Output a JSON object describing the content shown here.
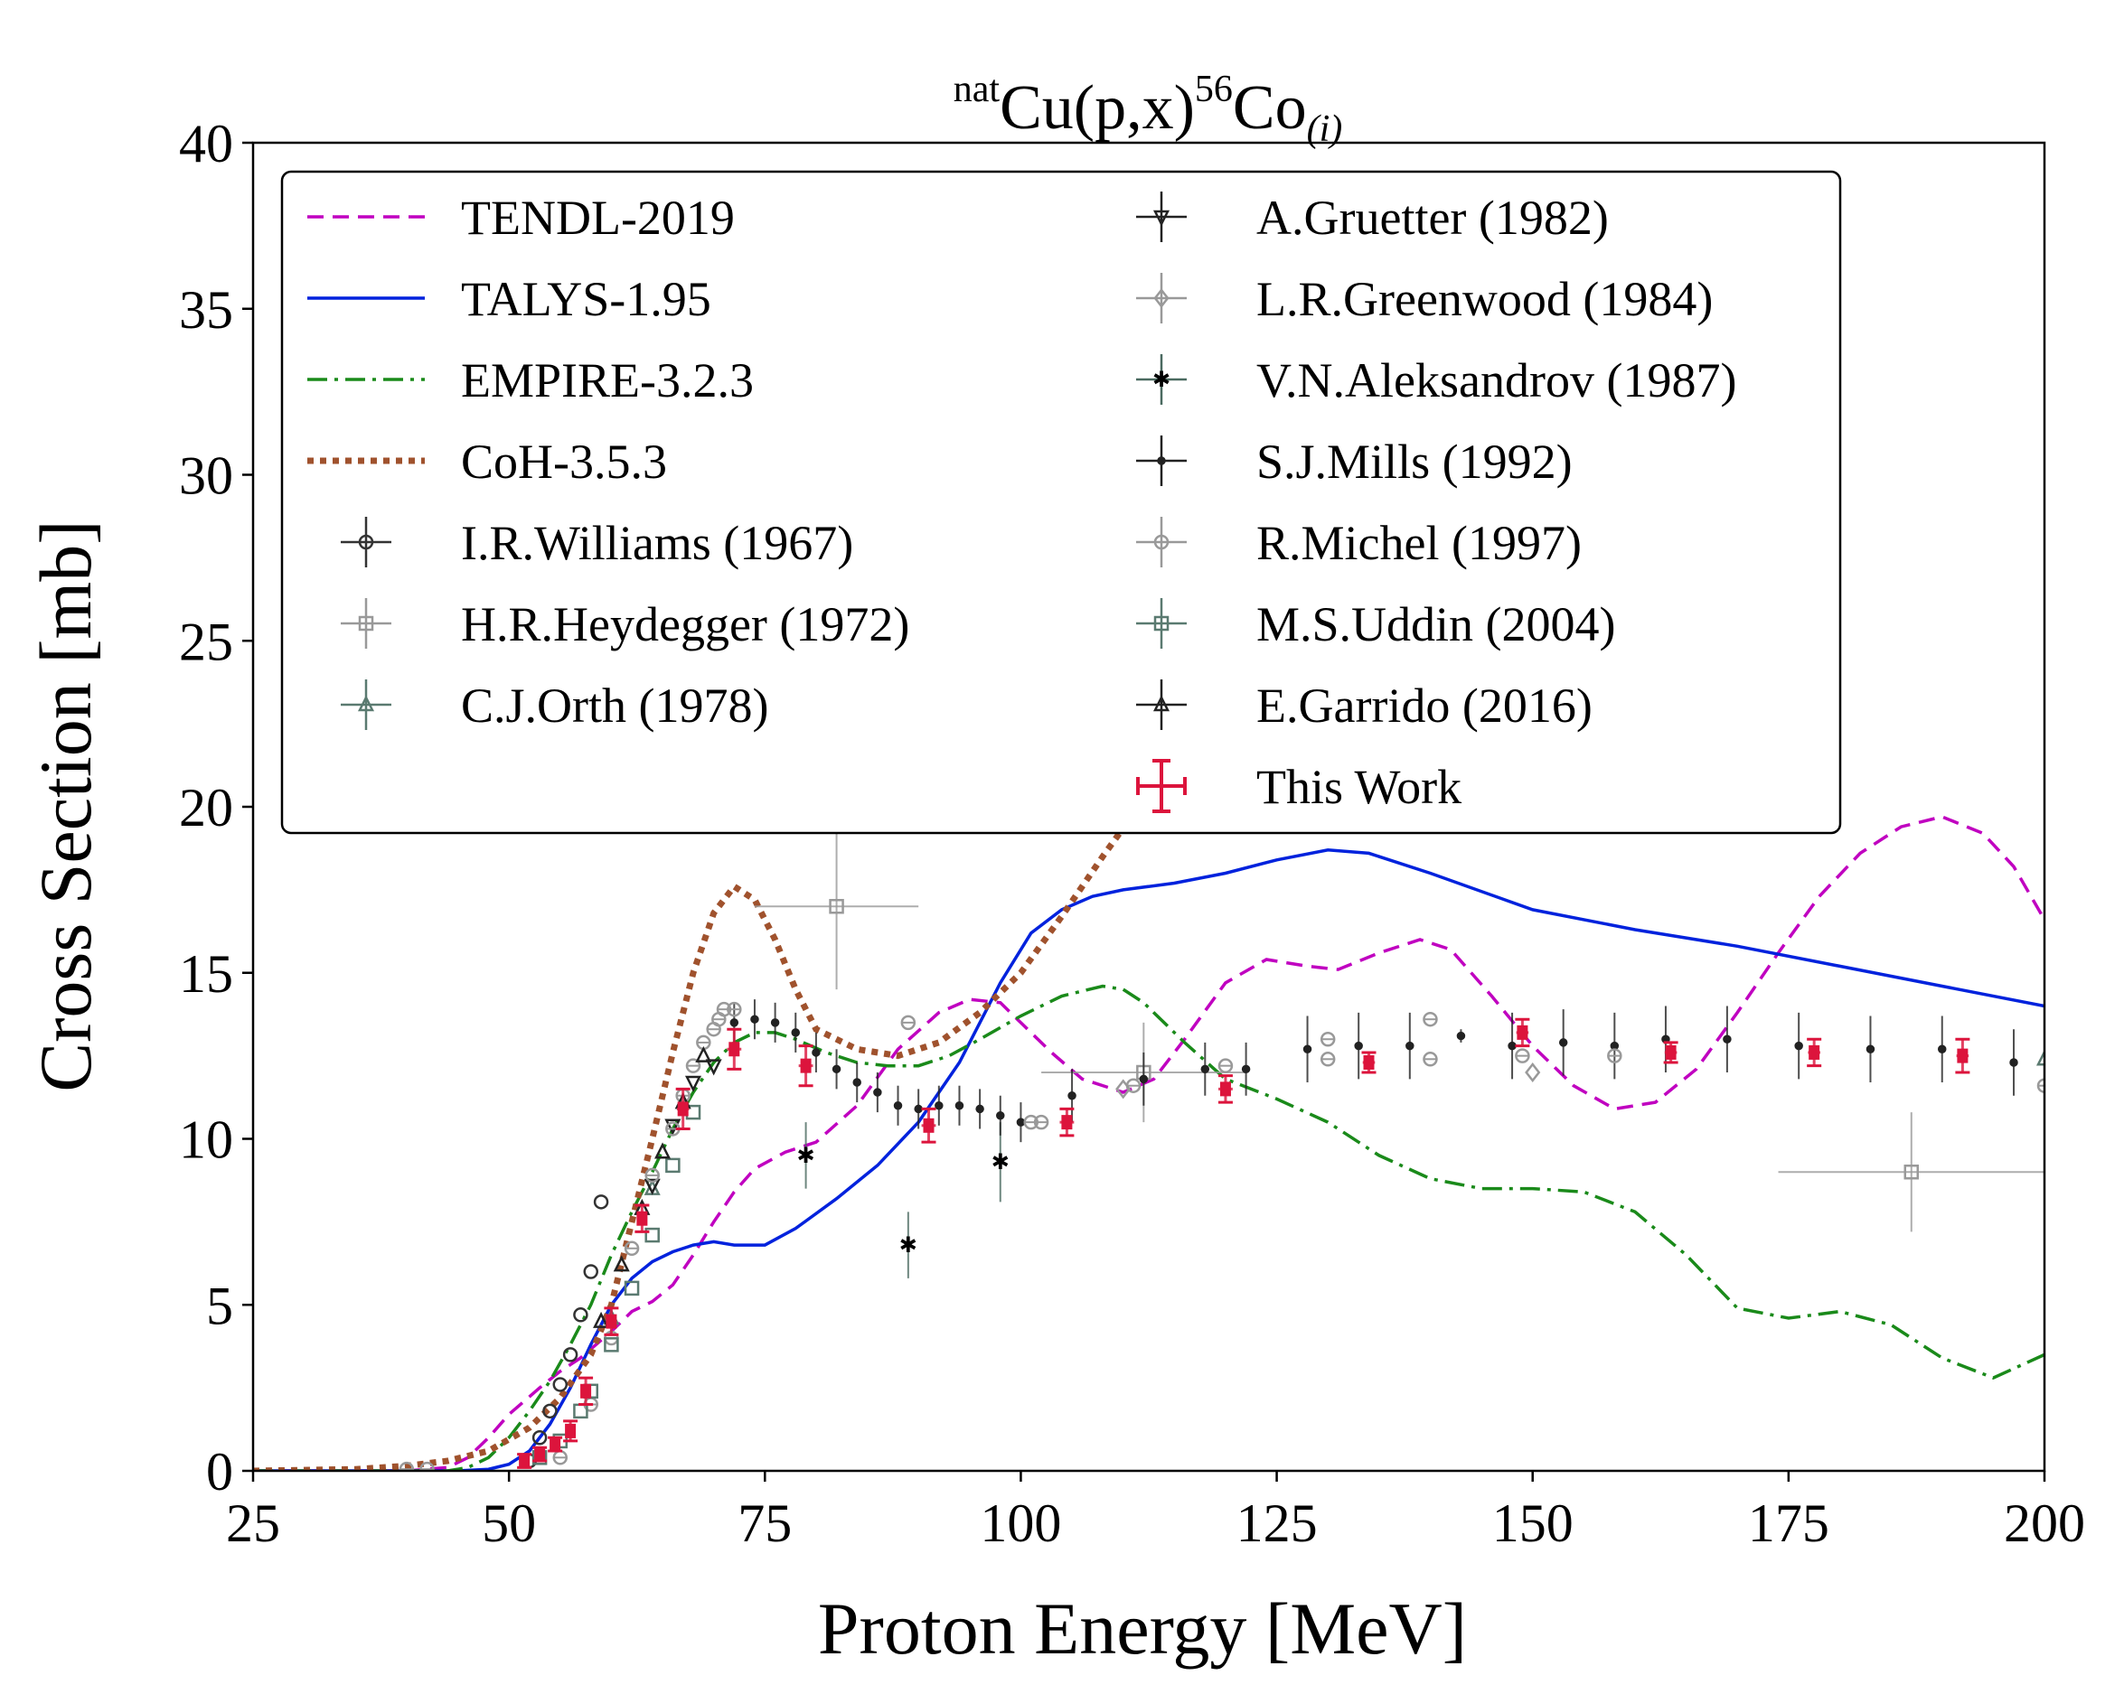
{
  "chart_data": {
    "type": "line",
    "title_prefix": "nat",
    "title_base": "Cu(p,x)",
    "title_mass": "56",
    "title_element": "Co",
    "title_subscript": "(i)",
    "xlabel": "Proton Energy [MeV]",
    "ylabel": "Cross Section [mb]",
    "xlim": [
      25,
      200
    ],
    "ylim": [
      0,
      40
    ],
    "xticks": [
      25,
      50,
      75,
      100,
      125,
      150,
      175,
      200
    ],
    "yticks": [
      0,
      5,
      10,
      15,
      20,
      25,
      30,
      35,
      40
    ],
    "legend_position": "top-left",
    "grid": false,
    "series": [
      {
        "name": "TENDL-2019",
        "kind": "line",
        "color": "#c000c0",
        "dash": "dashed",
        "x": [
          25,
          40,
          44,
          46,
          48,
          50,
          53,
          55,
          57,
          60,
          62,
          64,
          66,
          68,
          70,
          72,
          74,
          77,
          80,
          84,
          88,
          92,
          95,
          98,
          100,
          103,
          106,
          110,
          113,
          116,
          120,
          124,
          128,
          131,
          135,
          139,
          142,
          146,
          150,
          154,
          158,
          162,
          166,
          170,
          174,
          178,
          182,
          186,
          190,
          194,
          197,
          200
        ],
        "y": [
          0,
          0,
          0.1,
          0.4,
          1.0,
          1.7,
          2.5,
          3.0,
          3.4,
          4.2,
          4.8,
          5.1,
          5.6,
          6.5,
          7.5,
          8.4,
          9.1,
          9.6,
          9.9,
          11.0,
          12.7,
          13.8,
          14.2,
          14.1,
          13.5,
          12.6,
          11.8,
          11.4,
          11.8,
          13.0,
          14.7,
          15.4,
          15.2,
          15.1,
          15.6,
          16.0,
          15.7,
          14.3,
          12.8,
          11.6,
          10.9,
          11.1,
          12.1,
          13.8,
          15.6,
          17.3,
          18.6,
          19.4,
          19.7,
          19.2,
          18.2,
          16.6
        ]
      },
      {
        "name": "TALYS-1.95",
        "kind": "line",
        "color": "#0022dd",
        "dash": "solid",
        "x": [
          25,
          45,
          48,
          50,
          52,
          54,
          56,
          58,
          60,
          62,
          64,
          66,
          68,
          70,
          72,
          75,
          78,
          82,
          86,
          90,
          94,
          98,
          101,
          104,
          107,
          110,
          115,
          120,
          125,
          130,
          134,
          140,
          150,
          160,
          170,
          180,
          190,
          200
        ],
        "y": [
          0,
          0,
          0.05,
          0.2,
          0.6,
          1.4,
          2.5,
          3.8,
          5.0,
          5.8,
          6.3,
          6.6,
          6.8,
          6.9,
          6.8,
          6.8,
          7.3,
          8.2,
          9.2,
          10.5,
          12.3,
          14.7,
          16.2,
          16.9,
          17.3,
          17.5,
          17.7,
          18.0,
          18.4,
          18.7,
          18.6,
          18.0,
          16.9,
          16.3,
          15.8,
          15.2,
          14.6,
          14.0
        ]
      },
      {
        "name": "EMPIRE-3.2.3",
        "kind": "line",
        "color": "#1a8a1a",
        "dash": "dashdot",
        "x": [
          25,
          44,
          46,
          48,
          50,
          52,
          54,
          56,
          58,
          60,
          62,
          64,
          66,
          68,
          70,
          72,
          74,
          76,
          78,
          81,
          84,
          87,
          90,
          93,
          96,
          100,
          104,
          108,
          110,
          112,
          116,
          120,
          125,
          130,
          135,
          140,
          145,
          150,
          155,
          160,
          165,
          170,
          175,
          180,
          185,
          190,
          195,
          200
        ],
        "y": [
          0,
          0,
          0.1,
          0.4,
          1.0,
          1.8,
          2.7,
          3.8,
          5.0,
          6.5,
          7.8,
          9.0,
          10.3,
          11.4,
          12.3,
          12.9,
          13.2,
          13.2,
          13.0,
          12.6,
          12.3,
          12.2,
          12.2,
          12.5,
          13.0,
          13.7,
          14.3,
          14.6,
          14.5,
          14.1,
          12.9,
          11.8,
          11.2,
          10.5,
          9.5,
          8.8,
          8.5,
          8.5,
          8.4,
          7.8,
          6.5,
          4.9,
          4.6,
          4.8,
          4.4,
          3.4,
          2.8,
          3.5
        ]
      },
      {
        "name": "CoH-3.5.3",
        "kind": "line",
        "color": "#a0522d",
        "dash": "dotted",
        "x": [
          25,
          35,
          40,
          44,
          48,
          52,
          55,
          58,
          60,
          62,
          64,
          66,
          68,
          70,
          72,
          74,
          76,
          78,
          80,
          84,
          88,
          92,
          96,
          100,
          104,
          108,
          111.5
        ],
        "y": [
          0,
          0.05,
          0.15,
          0.3,
          0.6,
          1.3,
          2.2,
          3.5,
          5.0,
          7.5,
          10.0,
          12.6,
          15.0,
          16.8,
          17.6,
          17.2,
          16.0,
          14.5,
          13.3,
          12.7,
          12.5,
          12.9,
          13.8,
          15.0,
          16.7,
          18.5,
          20.0
        ]
      },
      {
        "name": "I.R.Williams (1967)",
        "kind": "points",
        "marker": "circle",
        "color": "#333333",
        "x": [
          52,
          53,
          54,
          55,
          56,
          57,
          58,
          59
        ],
        "y": [
          0.3,
          1.0,
          1.8,
          2.6,
          3.5,
          4.7,
          6.0,
          8.1
        ]
      },
      {
        "name": "H.R.Heydegger (1972)",
        "kind": "points",
        "marker": "square",
        "color": "#999999",
        "x": [
          82,
          112,
          187
        ],
        "y": [
          17.0,
          12.0,
          9.0
        ],
        "xerr": [
          8,
          10,
          13
        ],
        "yerr": [
          2.5,
          1.5,
          1.8
        ]
      },
      {
        "name": "C.J.Orth (1978)",
        "kind": "points",
        "marker": "triangle-up",
        "color": "#5a7a70",
        "x": [
          60,
          64,
          200
        ],
        "y": [
          4.6,
          8.5,
          12.4
        ]
      },
      {
        "name": "A.Gruetter (1982)",
        "kind": "points",
        "marker": "triangle-down",
        "color": "#222222",
        "x": [
          64,
          66,
          68,
          70
        ],
        "y": [
          8.6,
          10.4,
          11.7,
          12.2
        ]
      },
      {
        "name": "L.R.Greenwood (1984)",
        "kind": "points",
        "marker": "diamond",
        "color": "#999999",
        "x": [
          110,
          150
        ],
        "y": [
          11.5,
          12.0
        ]
      },
      {
        "name": "V.N.Aleksandrov (1987)",
        "kind": "points",
        "marker": "star",
        "color": "#4a6a60",
        "x": [
          79,
          89,
          98
        ],
        "y": [
          9.5,
          6.8,
          9.3
        ],
        "yerr": [
          1.0,
          1.0,
          1.2
        ]
      },
      {
        "name": "S.J.Mills (1992)",
        "kind": "points",
        "marker": "dot",
        "color": "#222222",
        "x": [
          72,
          74,
          76,
          78,
          80,
          82,
          84,
          86,
          88,
          90,
          92,
          94,
          96,
          98,
          100,
          105,
          112,
          118,
          122,
          128,
          133,
          138,
          143,
          148,
          153,
          158,
          163,
          169,
          176,
          183,
          190,
          197
        ],
        "y": [
          13.5,
          13.6,
          13.5,
          13.2,
          12.6,
          12.1,
          11.7,
          11.4,
          11.0,
          10.9,
          11.0,
          11.0,
          10.9,
          10.7,
          10.5,
          11.3,
          11.8,
          12.1,
          12.1,
          12.7,
          12.8,
          12.8,
          13.1,
          12.8,
          12.9,
          12.8,
          13.0,
          13.0,
          12.8,
          12.7,
          12.7,
          12.3
        ],
        "yerr": [
          0.6,
          0.6,
          0.6,
          0.6,
          0.6,
          0.6,
          0.6,
          0.6,
          0.6,
          0.6,
          0.6,
          0.6,
          0.6,
          0.6,
          0.6,
          0.8,
          0.8,
          0.8,
          0.8,
          1.0,
          1.0,
          1.0,
          0.2,
          1.0,
          1.0,
          1.0,
          1.0,
          1.0,
          1.0,
          1.0,
          1.0,
          1.0
        ]
      },
      {
        "name": "R.Michel (1997)",
        "kind": "points",
        "marker": "circle-cross",
        "color": "#999999",
        "x": [
          40,
          42,
          55,
          58,
          60,
          62,
          64,
          66,
          67,
          68,
          69,
          70,
          70.5,
          71,
          72,
          89,
          101,
          102,
          111,
          120,
          130,
          130,
          140,
          140,
          149,
          158,
          200
        ],
        "y": [
          0.05,
          0.05,
          0.4,
          2.0,
          4.0,
          6.7,
          8.9,
          10.3,
          11.3,
          12.2,
          12.9,
          13.3,
          13.6,
          13.9,
          13.9,
          13.5,
          10.5,
          10.5,
          11.6,
          12.2,
          13.0,
          12.4,
          13.6,
          12.4,
          12.5,
          12.5,
          11.6
        ]
      },
      {
        "name": "M.S.Uddin (2004)",
        "kind": "points",
        "marker": "square",
        "color": "#5a7a70",
        "x": [
          53,
          55,
          57,
          58,
          60,
          62,
          64,
          66,
          68
        ],
        "y": [
          0.4,
          0.9,
          1.8,
          2.4,
          3.8,
          5.5,
          7.1,
          9.2,
          10.8
        ]
      },
      {
        "name": "E.Garrido (2016)",
        "kind": "points",
        "marker": "triangle-up",
        "color": "#222222",
        "x": [
          59,
          61,
          63,
          65,
          67,
          69
        ],
        "y": [
          4.5,
          6.2,
          7.9,
          9.6,
          11.1,
          12.5
        ]
      },
      {
        "name": "This Work",
        "kind": "points",
        "marker": "errorbar",
        "color": "#dc143c",
        "x": [
          51.5,
          53,
          54.5,
          56,
          57.5,
          60,
          63,
          67,
          72,
          79,
          91,
          104.5,
          120,
          134,
          149,
          163.5,
          177.5,
          192
        ],
        "y": [
          0.3,
          0.5,
          0.8,
          1.2,
          2.4,
          4.5,
          7.6,
          10.9,
          12.7,
          12.2,
          10.4,
          10.5,
          11.5,
          12.3,
          13.2,
          12.6,
          12.6,
          12.5
        ],
        "xerr": [
          0.4,
          0.4,
          0.4,
          0.4,
          0.5,
          0.5,
          0.5,
          0.6,
          0.7,
          0.7,
          0.7,
          0.7,
          0.7,
          0.6,
          0.6,
          0.6,
          0.6,
          0.6
        ],
        "yerr": [
          0.2,
          0.2,
          0.2,
          0.3,
          0.4,
          0.4,
          0.4,
          0.6,
          0.6,
          0.6,
          0.5,
          0.4,
          0.4,
          0.3,
          0.4,
          0.3,
          0.4,
          0.5
        ]
      }
    ]
  }
}
